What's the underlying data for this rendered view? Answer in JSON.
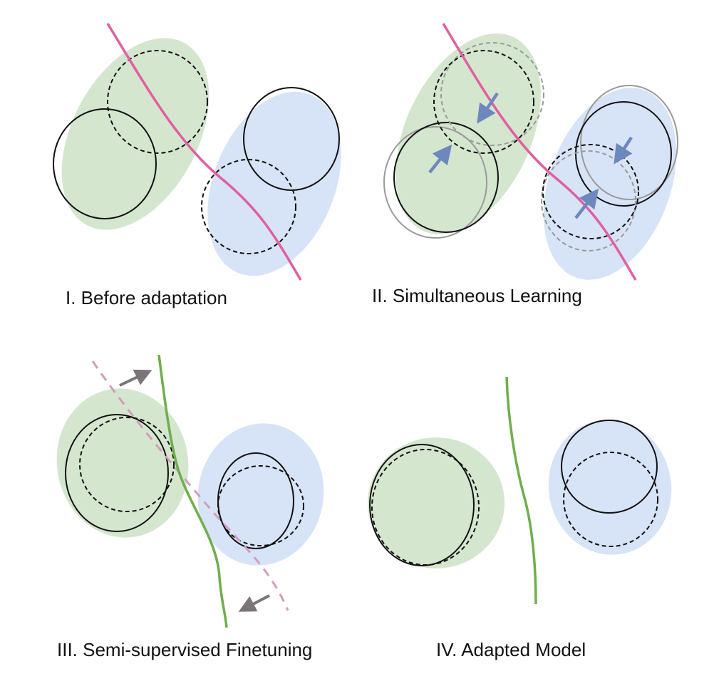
{
  "panels": [
    {
      "caption": "I. Before adaptation"
    },
    {
      "caption": "II. Simultaneous Learning"
    },
    {
      "caption": "III. Semi-supervised Finetuning"
    },
    {
      "caption": "IV. Adapted Model"
    }
  ],
  "colors": {
    "source_fill": "#d5e6cf",
    "target_fill": "#d7e3f6",
    "old_boundary": "#e0609f",
    "new_boundary": "#6fae4c",
    "shift_arrow": "#6d88bd",
    "move_arrow": "#7b7479",
    "outline": "#111111",
    "ghost_outline": "#9a9a9a"
  }
}
